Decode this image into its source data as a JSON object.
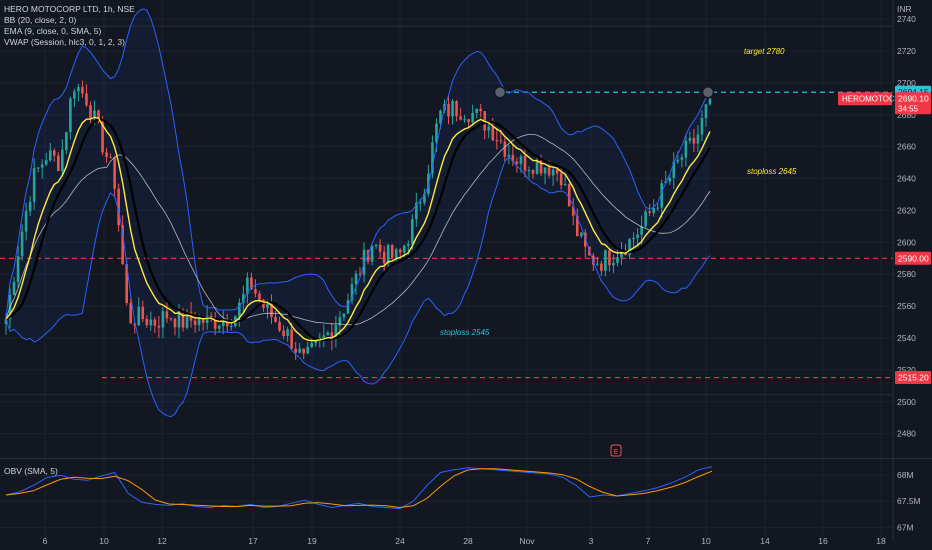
{
  "header": {
    "symbol_line": "HERO MOTOCORP LTD, 1h, NSE",
    "indicators": [
      "BB (20, close, 2, 0)",
      "EMA (9, close, 0, SMA, 5)",
      "VWAP (Session, hlc3, 0, 1, 2, 3)"
    ],
    "obv_label": "OBV (SMA, 5)"
  },
  "currency": "INR",
  "colors": {
    "background": "#131722",
    "grid": "#1e222d",
    "up": "#26a69a",
    "down": "#ef5350",
    "bb": "#2962ff",
    "ema": "#ffeb3b",
    "ema_dark": "#000000",
    "vwap": "#e0e0e0",
    "target_line": "#26c6da",
    "level_line": "#f23645",
    "obv": "#2962ff",
    "obv_sma": "#ff9800"
  },
  "chart_data": [
    {
      "type": "candlestick",
      "title": "HERO MOTOCORP LTD, 1h, NSE",
      "ylabel": "INR",
      "ylim": [
        2466,
        2752
      ],
      "y_ticks": [
        2480,
        2500,
        2520,
        2540,
        2560,
        2580,
        2600,
        2620,
        2640,
        2660,
        2680,
        2700,
        2720,
        2740
      ],
      "x_ticks": [
        "6",
        "10",
        "12",
        "17",
        "19",
        "24",
        "28",
        "Nov",
        "3",
        "7",
        "10",
        "14",
        "16",
        "18"
      ],
      "price_path": [
        2552,
        2600,
        2640,
        2655,
        2650,
        2700,
        2690,
        2665,
        2640,
        2552,
        2553,
        2550,
        2555,
        2550,
        2552,
        2550,
        2552,
        2555,
        2575,
        2560,
        2550,
        2540,
        2525,
        2535,
        2545,
        2560,
        2580,
        2600,
        2592,
        2590,
        2610,
        2640,
        2680,
        2684,
        2683,
        2678,
        2670,
        2658,
        2650,
        2650,
        2648,
        2643,
        2610,
        2590,
        2588,
        2594,
        2600,
        2610,
        2625,
        2640,
        2655,
        2665,
        2690
      ],
      "horizontal_levels": [
        {
          "label": "2590.00",
          "value": 2590.0,
          "style": "dashed"
        },
        {
          "label": "2515.20",
          "value": 2515.2,
          "style": "dashed"
        },
        {
          "label": "2694.15",
          "value": 2694.15,
          "style": "dashed-target"
        }
      ],
      "last_price": {
        "symbol": "HEROMOTOCO",
        "value": "2690.10",
        "countdown": "34:55"
      },
      "annotations": [
        {
          "text": "target 2780",
          "near": 2718
        },
        {
          "text": "stoploss 2645",
          "near": 2643
        },
        {
          "text": "stoploss 2545",
          "near": 2542
        }
      ],
      "overlays": [
        "Bollinger Bands",
        "EMA 9",
        "VWAP"
      ]
    },
    {
      "type": "line",
      "title": "OBV (SMA, 5)",
      "y_ticks": [
        "68M",
        "67.5M",
        "67M"
      ],
      "ylim": [
        66.95,
        68.25
      ],
      "series": [
        {
          "values": [
            67.62,
            67.68,
            67.8,
            67.95,
            68.0,
            67.92,
            67.9,
            67.98,
            68.05,
            67.65,
            67.48,
            67.44,
            67.42,
            67.45,
            67.4,
            67.38,
            67.42,
            67.4,
            67.44,
            67.38,
            67.4,
            67.46,
            67.52,
            67.44,
            67.38,
            67.42,
            67.46,
            67.4,
            67.38,
            67.36,
            67.5,
            67.8,
            68.05,
            68.1,
            68.14,
            68.12,
            68.1,
            68.08,
            68.06,
            68.04,
            68.02,
            67.96,
            67.8,
            67.58,
            67.62,
            67.6,
            67.65,
            67.7,
            67.76,
            67.85,
            67.96,
            68.1,
            68.16
          ]
        }
      ]
    }
  ]
}
